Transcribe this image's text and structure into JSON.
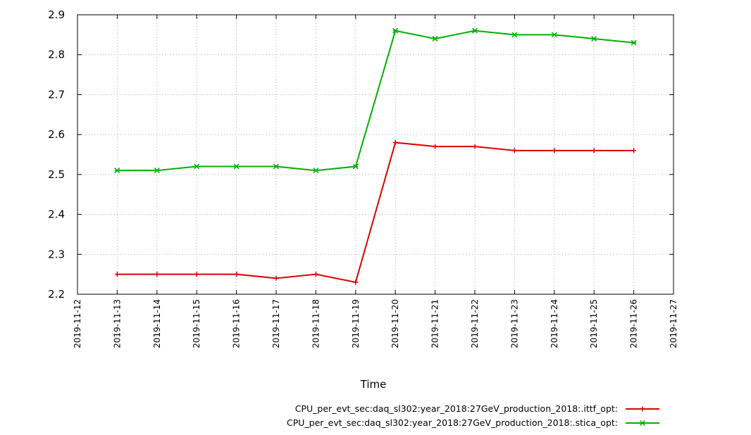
{
  "chart_data": {
    "type": "line",
    "title": "",
    "xlabel": "Time",
    "ylabel": "",
    "ylim": [
      2.2,
      2.9
    ],
    "yticks": [
      2.2,
      2.3,
      2.4,
      2.5,
      2.6,
      2.7,
      2.8,
      2.9
    ],
    "xticks": [
      "2019-11-12",
      "2019-11-13",
      "2019-11-14",
      "2019-11-15",
      "2019-11-16",
      "2019-11-17",
      "2019-11-18",
      "2019-11-19",
      "2019-11-20",
      "2019-11-21",
      "2019-11-22",
      "2019-11-23",
      "2019-11-24",
      "2019-11-25",
      "2019-11-26",
      "2019-11-27"
    ],
    "x": [
      "2019-11-13",
      "2019-11-14",
      "2019-11-15",
      "2019-11-16",
      "2019-11-17",
      "2019-11-18",
      "2019-11-19",
      "2019-11-20",
      "2019-11-21",
      "2019-11-22",
      "2019-11-23",
      "2019-11-24",
      "2019-11-25",
      "2019-11-26"
    ],
    "grid": true,
    "legend_position": "bottom-right",
    "series": [
      {
        "name": "CPU_per_evt_sec:daq_sl302:year_2018:27GeV_production_2018:.ittf_opt:",
        "color": "#dd0000",
        "marker": "plus",
        "values": [
          2.25,
          2.25,
          2.25,
          2.25,
          2.24,
          2.25,
          2.23,
          2.58,
          2.57,
          2.57,
          2.56,
          2.56,
          2.56,
          2.56
        ]
      },
      {
        "name": "CPU_per_evt_sec:daq_sl302:year_2018:27GeV_production_2018:.stica_opt:",
        "color": "#00b000",
        "marker": "cross",
        "values": [
          2.51,
          2.51,
          2.52,
          2.52,
          2.52,
          2.51,
          2.52,
          2.86,
          2.84,
          2.86,
          2.85,
          2.85,
          2.84,
          2.83
        ]
      }
    ]
  }
}
